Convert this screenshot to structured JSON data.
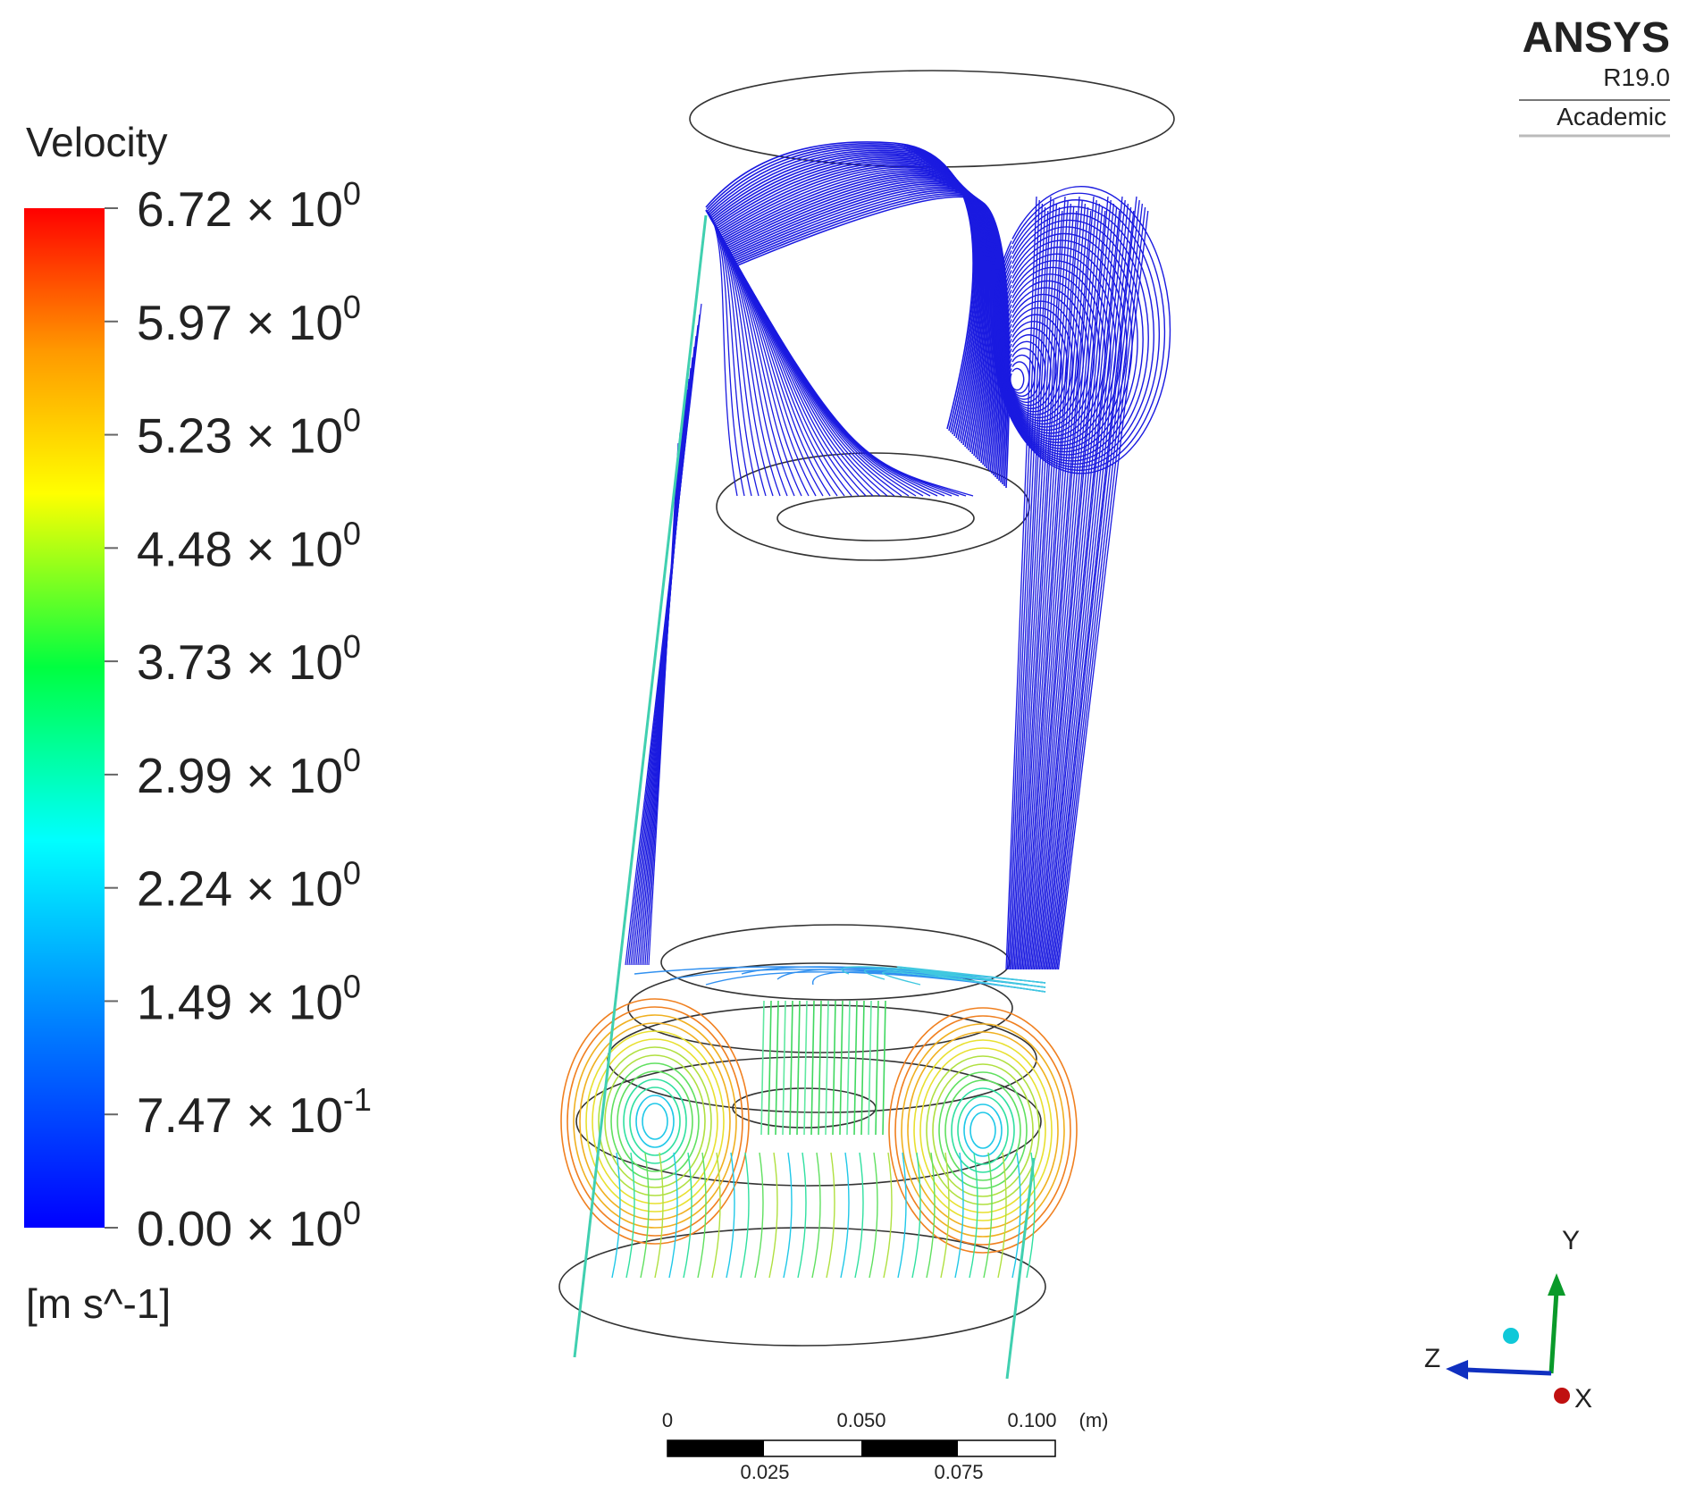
{
  "legend": {
    "title": "Velocity",
    "labels": [
      {
        "mantissa": "6.72 × 10",
        "exponent": "0"
      },
      {
        "mantissa": "5.97 × 10",
        "exponent": "0"
      },
      {
        "mantissa": "5.23 × 10",
        "exponent": "0"
      },
      {
        "mantissa": "4.48 × 10",
        "exponent": "0"
      },
      {
        "mantissa": "3.73 × 10",
        "exponent": "0"
      },
      {
        "mantissa": "2.99 × 10",
        "exponent": "0"
      },
      {
        "mantissa": "2.24 × 10",
        "exponent": "0"
      },
      {
        "mantissa": "1.49 × 10",
        "exponent": "0"
      },
      {
        "mantissa": "7.47 × 10",
        "exponent": "-1"
      },
      {
        "mantissa": "0.00 × 10",
        "exponent": "0"
      }
    ],
    "unit": "[m s^-1]"
  },
  "logo": {
    "name": "ANSYS",
    "version": "R19.0",
    "edition": "Academic"
  },
  "scale_bar": {
    "top_labels": [
      "0",
      "0.050",
      "0.100"
    ],
    "unit": "(m)",
    "bottom_labels": [
      "0.025",
      "0.075"
    ]
  },
  "axes": {
    "y": "Y",
    "z": "Z",
    "x": "X"
  }
}
